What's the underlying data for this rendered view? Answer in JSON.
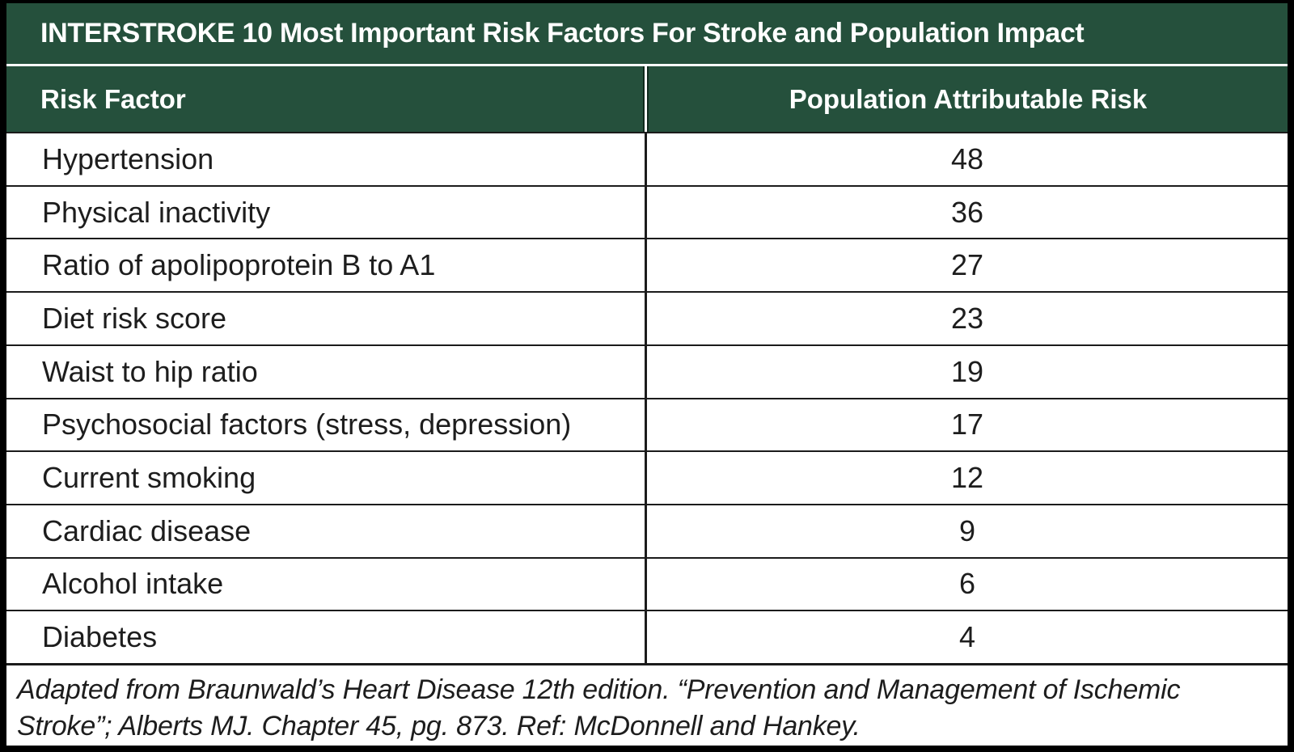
{
  "title": "INTERSTROKE 10 Most Important Risk Factors For Stroke and Population Impact",
  "table": {
    "columns": [
      {
        "label": "Risk Factor"
      },
      {
        "label": "Population Attributable Risk"
      }
    ],
    "rows": [
      {
        "factor": "Hypertension",
        "value": "48"
      },
      {
        "factor": "Physical inactivity",
        "value": "36"
      },
      {
        "factor": "Ratio of apolipoprotein B to A1",
        "value": "27"
      },
      {
        "factor": "Diet risk score",
        "value": "23"
      },
      {
        "factor": "Waist to hip ratio",
        "value": "19"
      },
      {
        "factor": "Psychosocial factors (stress, depression)",
        "value": "17"
      },
      {
        "factor": "Current smoking",
        "value": "12"
      },
      {
        "factor": "Cardiac disease",
        "value": "9"
      },
      {
        "factor": "Alcohol intake",
        "value": "6"
      },
      {
        "factor": "Diabetes",
        "value": "4"
      }
    ]
  },
  "footnote": {
    "lines": [
      "Adapted from Braunwald’s Heart Disease 12th edition. “Prevention and Management of Ischemic",
      "Stroke”; Alberts MJ. Chapter 45, pg. 873. Ref: McDonnell and Hankey."
    ]
  },
  "colors": {
    "header_green": "#25503c",
    "border_black": "#000000",
    "grid_line": "#1b1b1b",
    "text_dark": "#1d1d1d",
    "text_white": "#ffffff"
  },
  "chart_data": {
    "type": "table",
    "title": "INTERSTROKE 10 Most Important Risk Factors For Stroke and Population Impact",
    "columns": [
      "Risk Factor",
      "Population Attributable Risk"
    ],
    "categories": [
      "Hypertension",
      "Physical inactivity",
      "Ratio of apolipoprotein B to A1",
      "Diet risk score",
      "Waist to hip ratio",
      "Psychosocial factors (stress, depression)",
      "Current smoking",
      "Cardiac disease",
      "Alcohol intake",
      "Diabetes"
    ],
    "values": [
      48,
      36,
      27,
      23,
      19,
      17,
      12,
      9,
      6,
      4
    ],
    "footnote": "Adapted from Braunwald’s Heart Disease 12th edition. “Prevention and Management of Ischemic Stroke”; Alberts MJ. Chapter 45, pg. 873. Ref: McDonnell and Hankey."
  }
}
